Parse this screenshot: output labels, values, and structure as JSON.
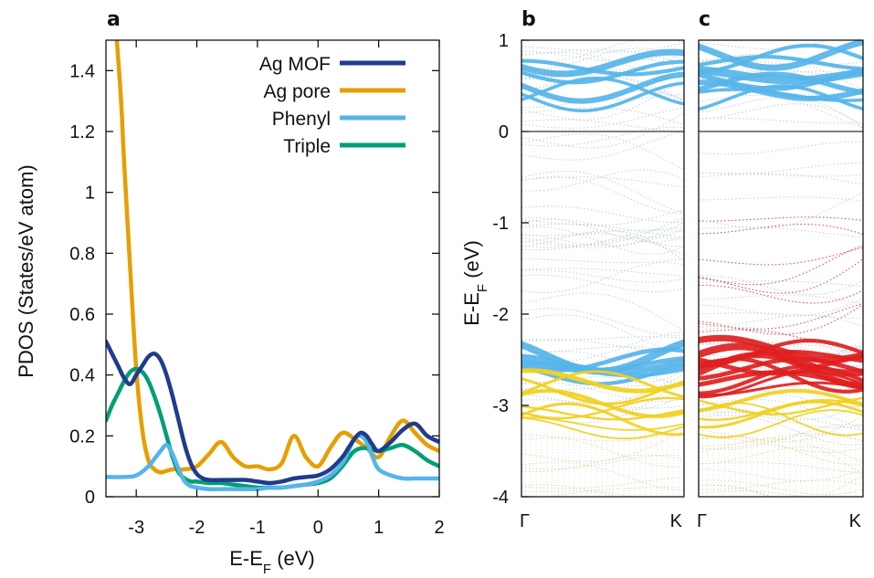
{
  "colors": {
    "ag_mof": "#1f3c8c",
    "ag_pore": "#e69f00",
    "phenyl": "#56b4e9",
    "triple": "#009e73",
    "band_blue": "#56b4e9",
    "band_red": "#e02020",
    "band_yellow": "#f0d020",
    "band_faint": "#b8c6d0"
  },
  "chart_data": [
    {
      "panel": "a",
      "type": "line",
      "xlabel_main": "E-E",
      "xlabel_sub": "F",
      "xlabel_tail": " (eV)",
      "ylabel": "PDOS (States/eV atom)",
      "xlim": [
        -3.5,
        2
      ],
      "ylim": [
        0,
        1.5
      ],
      "xticks": [
        -3,
        -2,
        -1,
        0,
        1,
        2
      ],
      "xtick_labels": [
        "-3",
        "-2",
        "-1",
        "0",
        "1",
        "2"
      ],
      "yticks": [
        0,
        0.2,
        0.4,
        0.6,
        0.8,
        1,
        1.2,
        1.4
      ],
      "ytick_labels": [
        "0",
        "0.2",
        "0.4",
        "0.6",
        "0.8",
        "1",
        "1.2",
        "1.4"
      ],
      "legend_position": "top-right",
      "series": [
        {
          "name": "Ag MOF",
          "color_key": "ag_mof",
          "x": [
            -3.5,
            -3.4,
            -3.3,
            -3.2,
            -3.1,
            -3.0,
            -2.9,
            -2.8,
            -2.7,
            -2.6,
            -2.5,
            -2.4,
            -2.3,
            -2.2,
            -2.1,
            -2.0,
            -1.9,
            -1.8,
            -1.6,
            -1.4,
            -1.2,
            -1.0,
            -0.8,
            -0.6,
            -0.4,
            -0.2,
            0.0,
            0.2,
            0.4,
            0.5,
            0.6,
            0.7,
            0.8,
            0.9,
            1.0,
            1.2,
            1.4,
            1.6,
            1.8,
            2.0
          ],
          "y": [
            0.51,
            0.47,
            0.43,
            0.39,
            0.37,
            0.4,
            0.43,
            0.46,
            0.47,
            0.45,
            0.4,
            0.33,
            0.25,
            0.17,
            0.11,
            0.075,
            0.06,
            0.055,
            0.055,
            0.055,
            0.055,
            0.05,
            0.045,
            0.05,
            0.06,
            0.065,
            0.07,
            0.09,
            0.13,
            0.16,
            0.19,
            0.21,
            0.2,
            0.17,
            0.15,
            0.18,
            0.22,
            0.24,
            0.2,
            0.18
          ]
        },
        {
          "name": "Ag pore",
          "color_key": "ag_pore",
          "x": [
            -3.32,
            -3.25,
            -3.2,
            -3.1,
            -3.0,
            -2.9,
            -2.8,
            -2.7,
            -2.6,
            -2.5,
            -2.4,
            -2.2,
            -2.0,
            -1.8,
            -1.6,
            -1.4,
            -1.2,
            -1.0,
            -0.8,
            -0.6,
            -0.4,
            -0.2,
            0.0,
            0.2,
            0.4,
            0.6,
            0.8,
            1.0,
            1.2,
            1.4,
            1.6,
            1.8,
            2.0
          ],
          "y": [
            1.5,
            1.3,
            1.1,
            0.75,
            0.42,
            0.22,
            0.12,
            0.09,
            0.08,
            0.085,
            0.09,
            0.09,
            0.1,
            0.14,
            0.18,
            0.13,
            0.1,
            0.1,
            0.09,
            0.11,
            0.2,
            0.13,
            0.1,
            0.16,
            0.21,
            0.19,
            0.16,
            0.13,
            0.2,
            0.25,
            0.21,
            0.17,
            0.15
          ]
        },
        {
          "name": "Phenyl",
          "color_key": "phenyl",
          "x": [
            -3.5,
            -3.2,
            -3.0,
            -2.8,
            -2.6,
            -2.5,
            -2.4,
            -2.3,
            -2.2,
            -2.1,
            -2.0,
            -1.8,
            -1.6,
            -1.4,
            -1.2,
            -1.0,
            -0.8,
            -0.6,
            -0.4,
            -0.2,
            0.0,
            0.2,
            0.4,
            0.5,
            0.6,
            0.7,
            0.8,
            0.9,
            1.0,
            1.2,
            1.4,
            1.6,
            1.8,
            2.0
          ],
          "y": [
            0.065,
            0.065,
            0.07,
            0.1,
            0.15,
            0.17,
            0.14,
            0.09,
            0.05,
            0.035,
            0.03,
            0.025,
            0.025,
            0.025,
            0.025,
            0.025,
            0.03,
            0.03,
            0.035,
            0.04,
            0.05,
            0.07,
            0.11,
            0.15,
            0.19,
            0.2,
            0.18,
            0.13,
            0.09,
            0.07,
            0.06,
            0.06,
            0.06,
            0.06
          ]
        },
        {
          "name": "Triple",
          "color_key": "triple",
          "x": [
            -3.5,
            -3.4,
            -3.3,
            -3.2,
            -3.1,
            -3.0,
            -2.9,
            -2.8,
            -2.7,
            -2.6,
            -2.5,
            -2.4,
            -2.3,
            -2.2,
            -2.1,
            -2.0,
            -1.8,
            -1.6,
            -1.4,
            -1.2,
            -1.0,
            -0.8,
            -0.6,
            -0.4,
            -0.2,
            0.0,
            0.2,
            0.4,
            0.6,
            0.8,
            1.0,
            1.2,
            1.4,
            1.6,
            1.8,
            2.0
          ],
          "y": [
            0.25,
            0.3,
            0.34,
            0.38,
            0.41,
            0.42,
            0.41,
            0.38,
            0.33,
            0.27,
            0.2,
            0.13,
            0.08,
            0.06,
            0.05,
            0.05,
            0.045,
            0.045,
            0.04,
            0.035,
            0.03,
            0.03,
            0.03,
            0.035,
            0.04,
            0.045,
            0.06,
            0.1,
            0.15,
            0.16,
            0.15,
            0.16,
            0.17,
            0.15,
            0.12,
            0.1
          ]
        }
      ]
    },
    {
      "panel": "b",
      "type": "line",
      "description_series": "band structure fat bands",
      "ylabel_main": "E-E",
      "ylabel_sub": "F",
      "ylabel_tail": " (eV)",
      "ylim": [
        -4,
        1
      ],
      "yticks": [
        -4,
        -3,
        -2,
        -1,
        0,
        1
      ],
      "ytick_labels": [
        "-4",
        "-3",
        "-2",
        "-1",
        "0",
        "1"
      ],
      "xtick_labels": [
        "Γ",
        "K"
      ],
      "fermi_level": 0,
      "fat_bands": [
        {
          "energy": 0.75,
          "weight": 7,
          "color_key": "band_blue"
        },
        {
          "energy": 0.48,
          "weight": 6,
          "color_key": "band_blue"
        },
        {
          "energy": -2.45,
          "weight": 8,
          "color_key": "band_blue"
        },
        {
          "energy": -2.55,
          "weight": 7,
          "color_key": "band_blue"
        },
        {
          "energy": -2.73,
          "weight": 5,
          "color_key": "band_yellow"
        },
        {
          "energy": -2.98,
          "weight": 4,
          "color_key": "band_yellow"
        },
        {
          "energy": -3.15,
          "weight": 3,
          "color_key": "band_yellow"
        }
      ]
    },
    {
      "panel": "c",
      "type": "line",
      "description_series": "band structure fat bands",
      "ylim": [
        -4,
        1
      ],
      "xtick_labels": [
        "Γ",
        "K"
      ],
      "fermi_level": 0,
      "fat_bands": [
        {
          "energy": 0.85,
          "weight": 7,
          "color_key": "band_blue"
        },
        {
          "energy": 0.62,
          "weight": 9,
          "color_key": "band_blue"
        },
        {
          "energy": 0.45,
          "weight": 6,
          "color_key": "band_blue"
        },
        {
          "energy": -2.38,
          "weight": 7,
          "color_key": "band_red"
        },
        {
          "energy": -2.5,
          "weight": 8,
          "color_key": "band_red"
        },
        {
          "energy": -2.62,
          "weight": 7,
          "color_key": "band_red"
        },
        {
          "energy": -2.72,
          "weight": 5,
          "color_key": "band_red"
        },
        {
          "energy": -2.95,
          "weight": 4,
          "color_key": "band_yellow"
        },
        {
          "energy": -3.1,
          "weight": 3,
          "color_key": "band_yellow"
        }
      ]
    }
  ]
}
